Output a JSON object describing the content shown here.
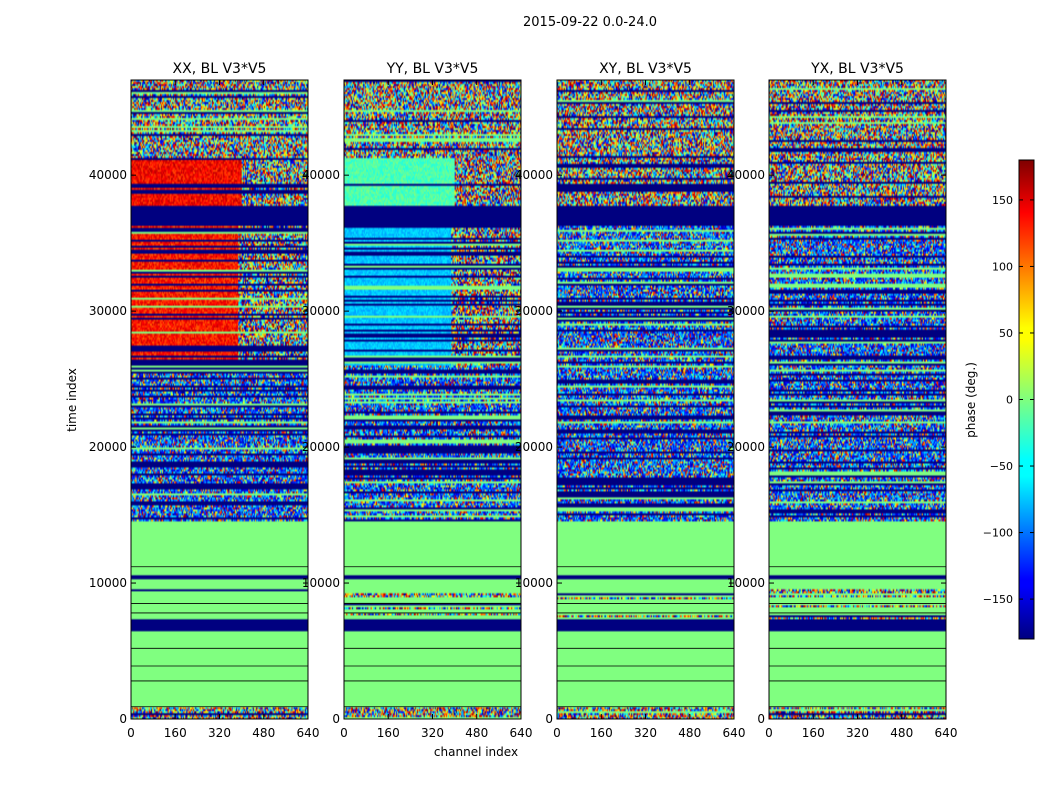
{
  "figure": {
    "suptitle": "2015-09-22 0.0-24.0"
  },
  "chart_data": {
    "type": "heatmap",
    "panels": [
      {
        "title": "XX, BL V3*V5"
      },
      {
        "title": "YY, BL V3*V5"
      },
      {
        "title": "XY, BL V3*V5"
      },
      {
        "title": "YX, BL V3*V5"
      }
    ],
    "xlabel": "channel index",
    "ylabel": "time index",
    "xlim": [
      0,
      640
    ],
    "ylim": [
      0,
      47000
    ],
    "xticks": [
      0,
      160,
      320,
      480,
      640
    ],
    "yticks": [
      0,
      10000,
      20000,
      30000,
      40000
    ],
    "colorbar": {
      "label": "phase (deg.)",
      "range": [
        -180,
        180
      ],
      "ticks": [
        150,
        100,
        50,
        0,
        -50,
        -100,
        -150
      ],
      "tick_labels": [
        "150",
        "100",
        "50",
        "0",
        "−50",
        "−100",
        "−150"
      ],
      "colormap": "jet"
    },
    "blocks": [
      {
        "t": [
          0,
          900
        ],
        "kind": "noise"
      },
      {
        "t": [
          900,
          6500
        ],
        "kind": "flat",
        "phase": 0
      },
      {
        "t": [
          6500,
          7300
        ],
        "kind": "masked"
      },
      {
        "t": [
          7300,
          9500
        ],
        "kind": "sparse"
      },
      {
        "t": [
          9500,
          10300
        ],
        "kind": "flat",
        "phase": 0
      },
      {
        "t": [
          10300,
          10600
        ],
        "kind": "masked"
      },
      {
        "t": [
          10600,
          14500
        ],
        "kind": "flat",
        "phase": 0
      },
      {
        "t": [
          14500,
          36300
        ],
        "kind": "striped"
      },
      {
        "t": [
          36300,
          37800
        ],
        "kind": "masked"
      },
      {
        "t": [
          37800,
          41200
        ],
        "kind": "structured"
      },
      {
        "t": [
          41200,
          47000
        ],
        "kind": "noise"
      }
    ]
  }
}
